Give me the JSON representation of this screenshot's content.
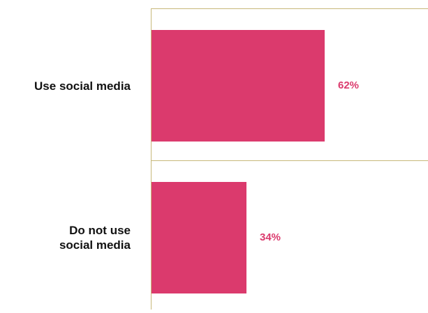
{
  "colors": {
    "bar": "#db3a6d",
    "value_label": "#db3a6d",
    "axis_line": "#c8b87a",
    "category_label": "#111111"
  },
  "chart_data": {
    "type": "bar",
    "orientation": "horizontal",
    "categories": [
      "Use social media",
      "Do not use social media"
    ],
    "category_labels_display": [
      "Use social media",
      "Do not use\nsocial media"
    ],
    "values": [
      62,
      34
    ],
    "value_labels": [
      "62%",
      "34%"
    ],
    "xlim": [
      0,
      100
    ],
    "grid": false,
    "legend": "none"
  }
}
